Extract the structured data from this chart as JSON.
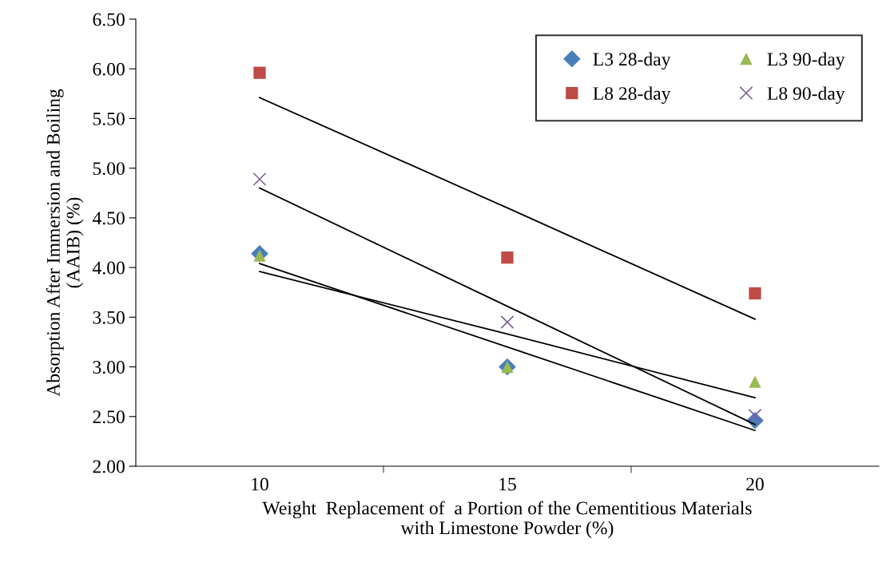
{
  "chart_data": {
    "type": "scatter",
    "xlabel": "Weight  Replacement of  a Portion of the Cementitious Materials\nwith Limestone Powder (%)",
    "ylabel": "Absorption After Immersion and Boiling\n(AAIB) (%)",
    "x": [
      10,
      15,
      20
    ],
    "series": [
      {
        "name": "L3 28-day",
        "color": "#4a7ebb",
        "marker": "diamond",
        "values": [
          4.14,
          3.0,
          2.46
        ]
      },
      {
        "name": "L8 28-day",
        "color": "#be4b48",
        "marker": "square",
        "values": [
          5.96,
          4.1,
          3.74
        ]
      },
      {
        "name": "L3 90-day",
        "color": "#98b954",
        "marker": "triangle",
        "values": [
          4.12,
          3.0,
          2.85
        ]
      },
      {
        "name": "L8 90-day",
        "color": "#7d60a0",
        "marker": "cross",
        "values": [
          4.89,
          3.45,
          2.51
        ]
      },
      {
        "type": "line",
        "color": "#000000",
        "values": [
          4.04,
          3.2,
          2.36
        ]
      },
      {
        "type": "line",
        "color": "#000000",
        "values": [
          5.71,
          4.6,
          3.48
        ]
      },
      {
        "type": "line",
        "color": "#000000",
        "values": [
          3.96,
          3.33,
          2.69
        ]
      },
      {
        "type": "line",
        "color": "#000000",
        "values": [
          4.8,
          3.61,
          2.42
        ]
      }
    ],
    "xlim": [
      7.5,
      22.5
    ],
    "xticks": [
      {
        "value": 10,
        "label": "10"
      },
      {
        "value": 12.5,
        "label": null
      },
      {
        "value": 15,
        "label": "15"
      },
      {
        "value": 17.5,
        "label": null
      },
      {
        "value": 20,
        "label": "20"
      }
    ],
    "ylim": [
      2.0,
      6.5
    ],
    "yticks": [
      {
        "value": 2.0,
        "label": "2.00"
      },
      {
        "value": 2.5,
        "label": "2.50"
      },
      {
        "value": 3.0,
        "label": "3.00"
      },
      {
        "value": 3.5,
        "label": "3.50"
      },
      {
        "value": 4.0,
        "label": "4.00"
      },
      {
        "value": 4.5,
        "label": "4.50"
      },
      {
        "value": 5.0,
        "label": "5.00"
      },
      {
        "value": 5.5,
        "label": "5.50"
      },
      {
        "value": 6.0,
        "label": "6.00"
      },
      {
        "value": 6.5,
        "label": "6.50"
      }
    ],
    "grid": false,
    "legend": "top right"
  }
}
